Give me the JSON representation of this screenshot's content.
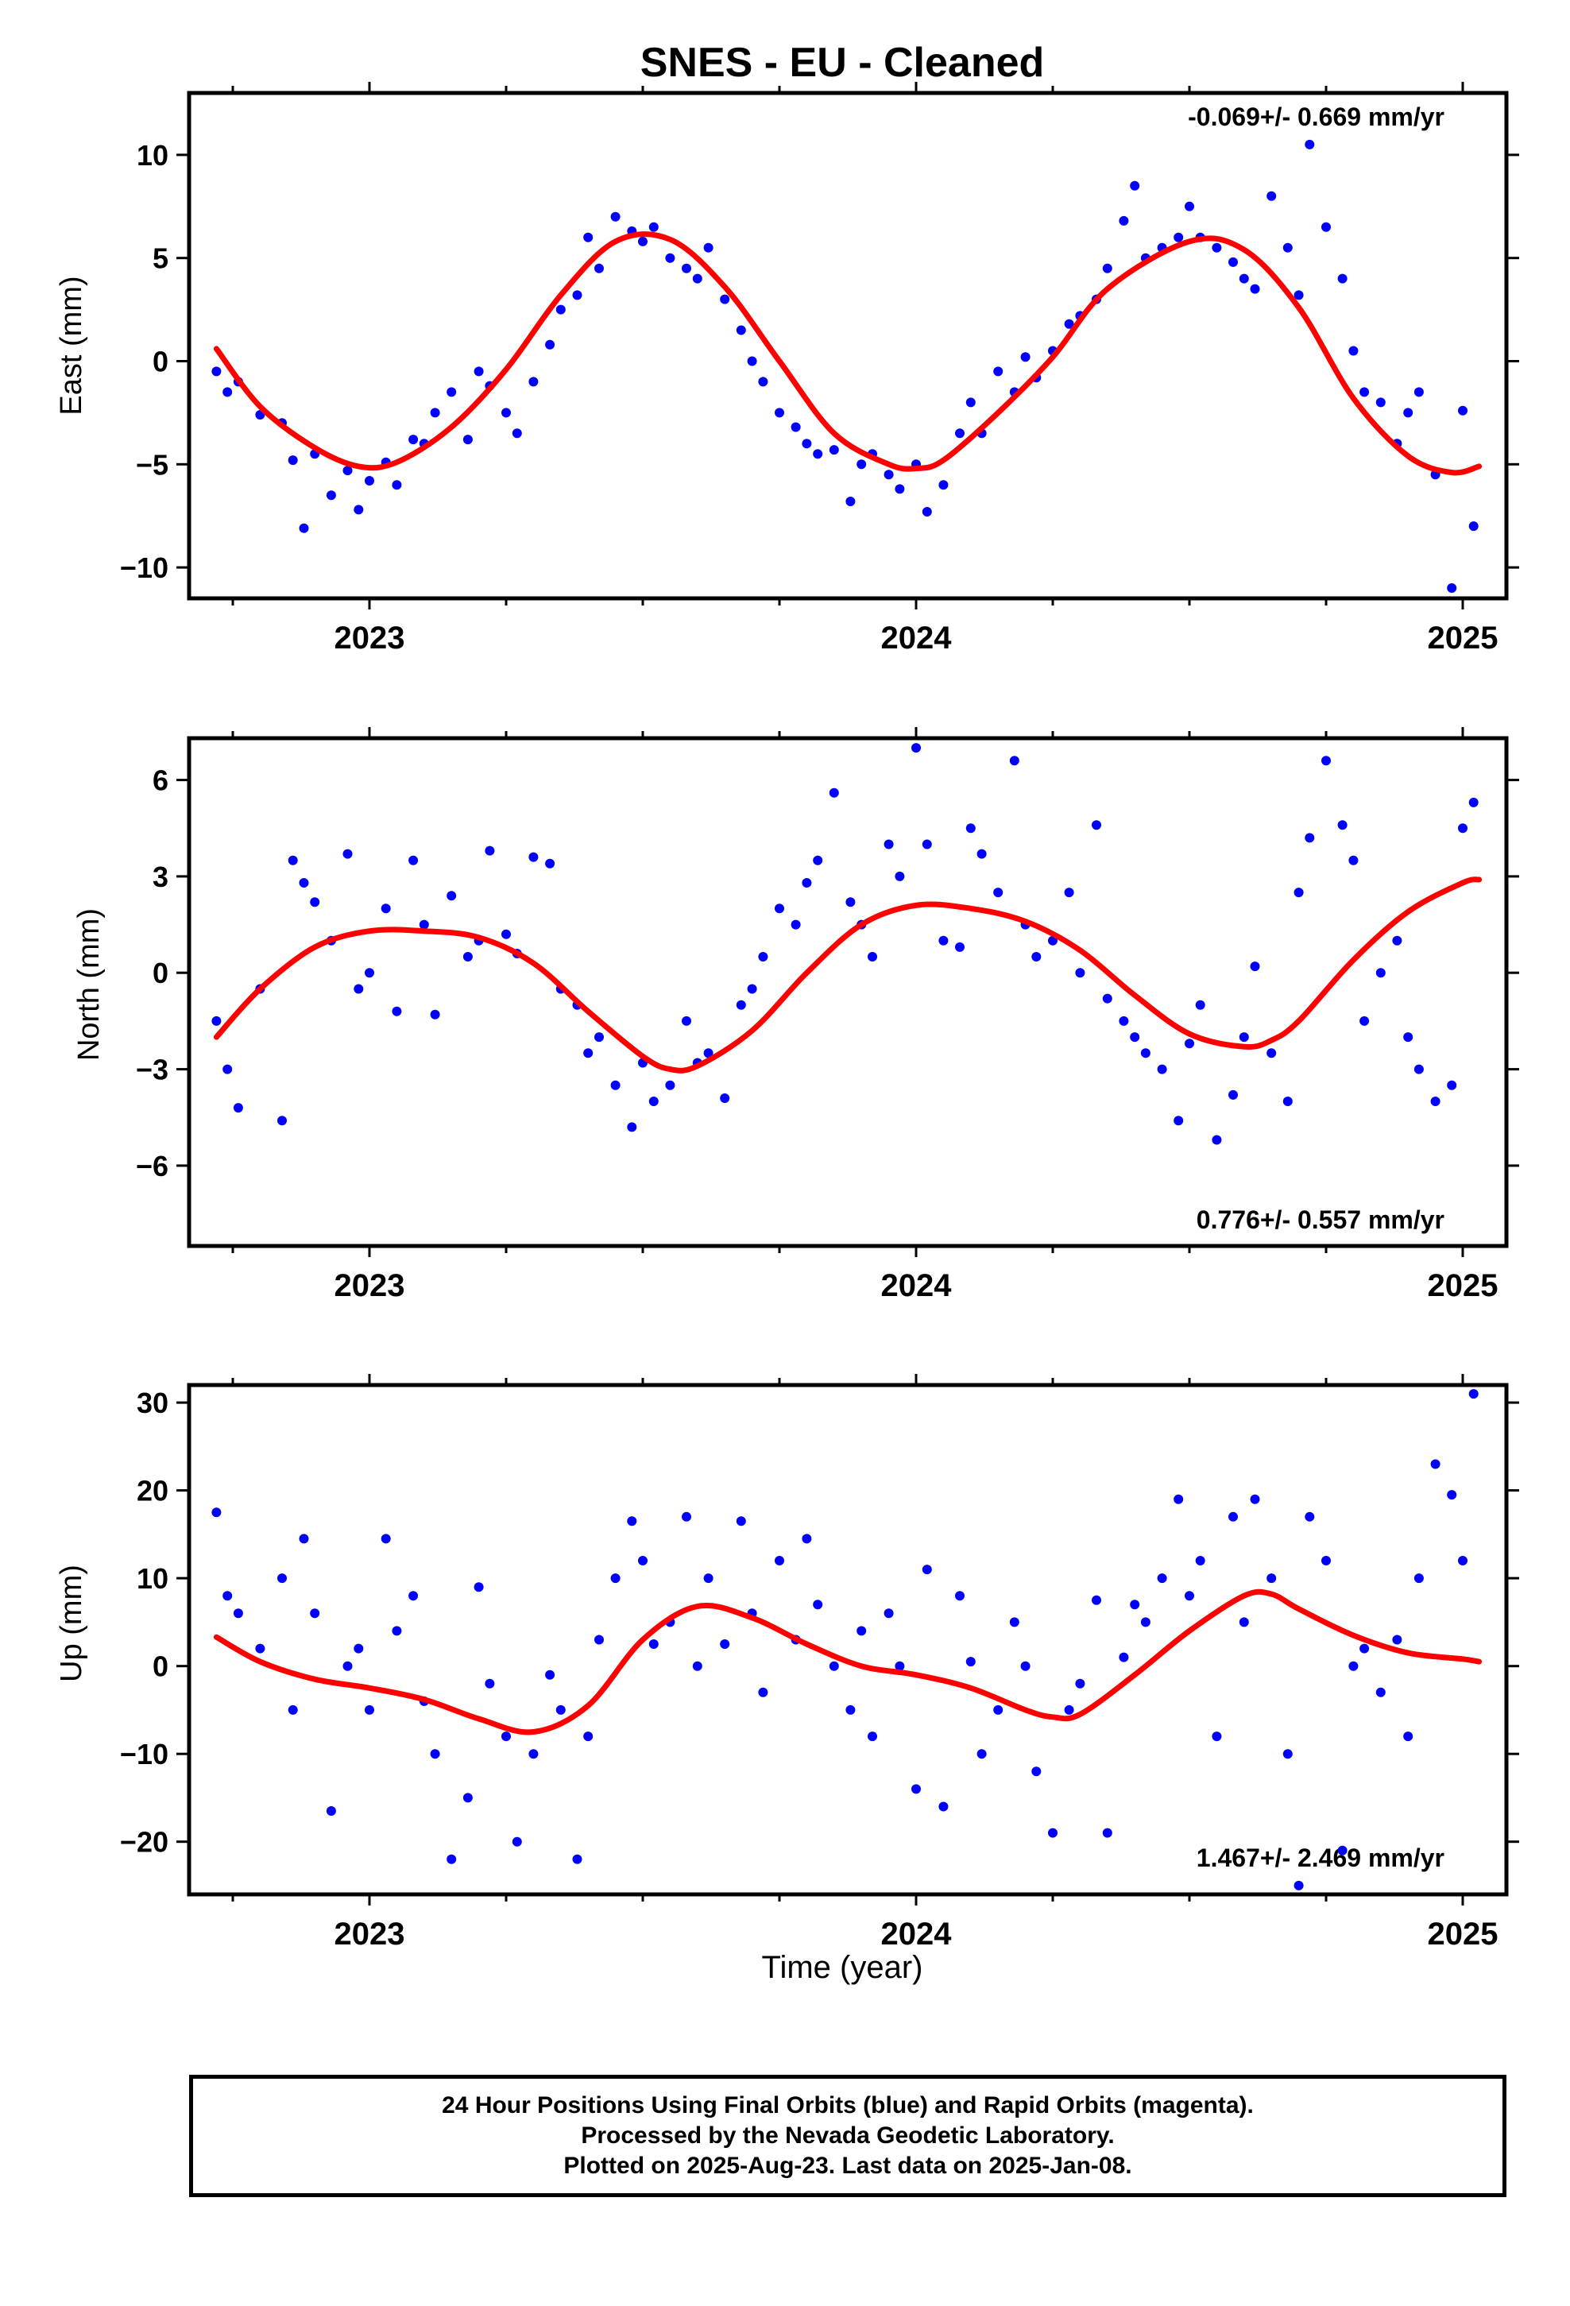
{
  "title": "SNES  - EU - Cleaned",
  "xlabel": "Time (year)",
  "footer": {
    "line1": "24 Hour Positions Using Final Orbits (blue) and Rapid Orbits (magenta).",
    "line2": "Processed by the Nevada Geodetic Laboratory.",
    "line3": "Plotted on 2025-Aug-23. Last data on 2025-Jan-08."
  },
  "colors": {
    "points": "#0000ff",
    "model": "#ff0000",
    "frame": "#000000"
  },
  "chart_data": [
    {
      "type": "scatter",
      "name": "east",
      "ylabel": "East (mm)",
      "rate_label": "-0.069+/- 0.669 mm/yr",
      "rate_position": "top-right",
      "xlim": [
        2022.67,
        2025.08
      ],
      "ylim": [
        -11.5,
        13
      ],
      "yticks": [
        -10,
        -5,
        0,
        5,
        10
      ],
      "xticks": [
        2023,
        2024,
        2025
      ],
      "xtick_labels": [
        "2023",
        "2024",
        "2025"
      ],
      "grid": false,
      "fit": {
        "x": [
          2022.72,
          2022.8,
          2022.9,
          2022.98,
          2023.05,
          2023.15,
          2023.25,
          2023.35,
          2023.45,
          2023.55,
          2023.65,
          2023.75,
          2023.85,
          2023.95,
          2024.0,
          2024.05,
          2024.15,
          2024.25,
          2024.35,
          2024.5,
          2024.6,
          2024.7,
          2024.8,
          2024.9,
          2024.98,
          2025.03
        ],
        "y": [
          0.6,
          -2.2,
          -4.2,
          -5.1,
          -4.9,
          -3.2,
          -0.4,
          3.2,
          5.8,
          5.9,
          3.6,
          0.0,
          -3.5,
          -5.0,
          -5.2,
          -4.8,
          -2.5,
          0.2,
          3.5,
          5.8,
          5.4,
          2.6,
          -1.8,
          -4.6,
          -5.4,
          -5.1
        ]
      },
      "points": {
        "x": [
          2022.72,
          2022.74,
          2022.76,
          2022.8,
          2022.84,
          2022.86,
          2022.88,
          2022.9,
          2022.93,
          2022.96,
          2022.98,
          2023.0,
          2023.03,
          2023.05,
          2023.08,
          2023.1,
          2023.12,
          2023.15,
          2023.18,
          2023.2,
          2023.22,
          2023.25,
          2023.27,
          2023.3,
          2023.33,
          2023.35,
          2023.38,
          2023.4,
          2023.42,
          2023.45,
          2023.48,
          2023.5,
          2023.52,
          2023.55,
          2023.58,
          2023.6,
          2023.62,
          2023.65,
          2023.68,
          2023.7,
          2023.72,
          2023.75,
          2023.78,
          2023.8,
          2023.82,
          2023.85,
          2023.88,
          2023.9,
          2023.92,
          2023.95,
          2023.97,
          2024.0,
          2024.02,
          2024.05,
          2024.08,
          2024.1,
          2024.12,
          2024.15,
          2024.18,
          2024.2,
          2024.22,
          2024.25,
          2024.28,
          2024.3,
          2024.33,
          2024.35,
          2024.38,
          2024.4,
          2024.42,
          2024.45,
          2024.48,
          2024.5,
          2024.52,
          2024.55,
          2024.58,
          2024.6,
          2024.62,
          2024.65,
          2024.68,
          2024.7,
          2024.72,
          2024.75,
          2024.78,
          2024.8,
          2024.82,
          2024.85,
          2024.88,
          2024.9,
          2024.92,
          2024.95,
          2024.98,
          2025.0,
          2025.02
        ],
        "y": [
          -0.5,
          -1.5,
          -1.0,
          -2.6,
          -3.0,
          -4.8,
          -8.1,
          -4.5,
          -6.5,
          -5.3,
          -7.2,
          -5.8,
          -4.9,
          -6.0,
          -3.8,
          -4.0,
          -2.5,
          -1.5,
          -3.8,
          -0.5,
          -1.2,
          -2.5,
          -3.5,
          -1.0,
          0.8,
          2.5,
          3.2,
          6.0,
          4.5,
          7.0,
          6.3,
          5.8,
          6.5,
          5.0,
          4.5,
          4.0,
          5.5,
          3.0,
          1.5,
          0.0,
          -1.0,
          -2.5,
          -3.2,
          -4.0,
          -4.5,
          -4.3,
          -6.8,
          -5.0,
          -4.5,
          -5.5,
          -6.2,
          -5.0,
          -7.3,
          -6.0,
          -3.5,
          -2.0,
          -3.5,
          -0.5,
          -1.5,
          0.2,
          -0.8,
          0.5,
          1.8,
          2.2,
          3.0,
          4.5,
          6.8,
          8.5,
          5.0,
          5.5,
          6.0,
          7.5,
          6.0,
          5.5,
          4.8,
          4.0,
          3.5,
          8.0,
          5.5,
          3.2,
          10.5,
          6.5,
          4.0,
          0.5,
          -1.5,
          -2.0,
          -4.0,
          -2.5,
          -1.5,
          -5.5,
          -11.0,
          -2.4,
          -8.0
        ]
      }
    },
    {
      "type": "scatter",
      "name": "north",
      "ylabel": "North (mm)",
      "rate_label": "0.776+/- 0.557 mm/yr",
      "rate_position": "bottom-right",
      "xlim": [
        2022.67,
        2025.08
      ],
      "ylim": [
        -8.5,
        7.3
      ],
      "yticks": [
        -6,
        -3,
        0,
        3,
        6
      ],
      "xticks": [
        2023,
        2024,
        2025
      ],
      "xtick_labels": [
        "2023",
        "2024",
        "2025"
      ],
      "grid": false,
      "fit": {
        "x": [
          2022.72,
          2022.8,
          2022.9,
          2023.0,
          2023.1,
          2023.2,
          2023.3,
          2023.4,
          2023.5,
          2023.55,
          2023.6,
          2023.7,
          2023.8,
          2023.9,
          2024.0,
          2024.1,
          2024.2,
          2024.3,
          2024.4,
          2024.5,
          2024.6,
          2024.65,
          2024.7,
          2024.8,
          2024.9,
          2025.0,
          2025.03
        ],
        "y": [
          -2.0,
          -0.5,
          0.8,
          1.3,
          1.3,
          1.1,
          0.3,
          -1.2,
          -2.6,
          -3.0,
          -2.9,
          -1.8,
          0.0,
          1.5,
          2.1,
          2.0,
          1.6,
          0.7,
          -0.7,
          -1.9,
          -2.3,
          -2.1,
          -1.5,
          0.4,
          1.9,
          2.8,
          2.9
        ]
      },
      "points": {
        "x": [
          2022.72,
          2022.74,
          2022.76,
          2022.8,
          2022.84,
          2022.86,
          2022.88,
          2022.9,
          2022.93,
          2022.96,
          2022.98,
          2023.0,
          2023.03,
          2023.05,
          2023.08,
          2023.1,
          2023.12,
          2023.15,
          2023.18,
          2023.2,
          2023.22,
          2023.25,
          2023.27,
          2023.3,
          2023.33,
          2023.35,
          2023.38,
          2023.4,
          2023.42,
          2023.45,
          2023.48,
          2023.5,
          2023.52,
          2023.55,
          2023.58,
          2023.6,
          2023.62,
          2023.65,
          2023.68,
          2023.7,
          2023.72,
          2023.75,
          2023.78,
          2023.8,
          2023.82,
          2023.85,
          2023.88,
          2023.9,
          2023.92,
          2023.95,
          2023.97,
          2024.0,
          2024.02,
          2024.05,
          2024.08,
          2024.1,
          2024.12,
          2024.15,
          2024.18,
          2024.2,
          2024.22,
          2024.25,
          2024.28,
          2024.3,
          2024.33,
          2024.35,
          2024.38,
          2024.4,
          2024.42,
          2024.45,
          2024.48,
          2024.5,
          2024.52,
          2024.55,
          2024.58,
          2024.6,
          2024.62,
          2024.65,
          2024.68,
          2024.7,
          2024.72,
          2024.75,
          2024.78,
          2024.8,
          2024.82,
          2024.85,
          2024.88,
          2024.9,
          2024.92,
          2024.95,
          2024.98,
          2025.0,
          2025.02
        ],
        "y": [
          -1.5,
          -3.0,
          -4.2,
          -0.5,
          -4.6,
          3.5,
          2.8,
          2.2,
          1.0,
          3.7,
          -0.5,
          0.0,
          2.0,
          -1.2,
          3.5,
          1.5,
          -1.3,
          2.4,
          0.5,
          1.0,
          3.8,
          1.2,
          0.6,
          3.6,
          3.4,
          -0.5,
          -1.0,
          -2.5,
          -2.0,
          -3.5,
          -4.8,
          -2.8,
          -4.0,
          -3.5,
          -1.5,
          -2.8,
          -2.5,
          -3.9,
          -1.0,
          -0.5,
          0.5,
          2.0,
          1.5,
          2.8,
          3.5,
          5.6,
          2.2,
          1.5,
          0.5,
          4.0,
          3.0,
          7.0,
          4.0,
          1.0,
          0.8,
          4.5,
          3.7,
          2.5,
          6.6,
          1.5,
          0.5,
          1.0,
          2.5,
          0.0,
          4.6,
          -0.8,
          -1.5,
          -2.0,
          -2.5,
          -3.0,
          -4.6,
          -2.2,
          -1.0,
          -5.2,
          -3.8,
          -2.0,
          0.2,
          -2.5,
          -4.0,
          2.5,
          4.2,
          6.6,
          4.6,
          3.5,
          -1.5,
          0.0,
          1.0,
          -2.0,
          -3.0,
          -4.0,
          -3.5,
          4.5,
          5.3
        ]
      }
    },
    {
      "type": "scatter",
      "name": "up",
      "ylabel": "Up (mm)",
      "rate_label": "1.467+/- 2.469 mm/yr",
      "rate_position": "bottom-right",
      "xlim": [
        2022.67,
        2025.08
      ],
      "ylim": [
        -26,
        32
      ],
      "yticks": [
        -20,
        -10,
        0,
        10,
        20,
        30
      ],
      "xticks": [
        2023,
        2024,
        2025
      ],
      "xtick_labels": [
        "2023",
        "2024",
        "2025"
      ],
      "grid": false,
      "fit": {
        "x": [
          2022.72,
          2022.8,
          2022.9,
          2023.0,
          2023.1,
          2023.2,
          2023.3,
          2023.4,
          2023.5,
          2023.6,
          2023.7,
          2023.8,
          2023.9,
          2024.0,
          2024.1,
          2024.2,
          2024.25,
          2024.3,
          2024.4,
          2024.5,
          2024.6,
          2024.65,
          2024.7,
          2024.8,
          2024.9,
          2025.0,
          2025.03
        ],
        "y": [
          3.3,
          0.5,
          -1.5,
          -2.5,
          -3.8,
          -6.0,
          -7.5,
          -4.5,
          3.0,
          6.8,
          5.5,
          2.5,
          0.0,
          -1.0,
          -2.5,
          -5.0,
          -5.8,
          -5.5,
          -1.0,
          4.0,
          8.0,
          8.2,
          6.5,
          3.5,
          1.5,
          0.8,
          0.5
        ]
      },
      "points": {
        "x": [
          2022.72,
          2022.74,
          2022.76,
          2022.8,
          2022.84,
          2022.86,
          2022.88,
          2022.9,
          2022.93,
          2022.96,
          2022.98,
          2023.0,
          2023.03,
          2023.05,
          2023.08,
          2023.1,
          2023.12,
          2023.15,
          2023.18,
          2023.2,
          2023.22,
          2023.25,
          2023.27,
          2023.3,
          2023.33,
          2023.35,
          2023.38,
          2023.4,
          2023.42,
          2023.45,
          2023.48,
          2023.5,
          2023.52,
          2023.55,
          2023.58,
          2023.6,
          2023.62,
          2023.65,
          2023.68,
          2023.7,
          2023.72,
          2023.75,
          2023.78,
          2023.8,
          2023.82,
          2023.85,
          2023.88,
          2023.9,
          2023.92,
          2023.95,
          2023.97,
          2024.0,
          2024.02,
          2024.05,
          2024.08,
          2024.1,
          2024.12,
          2024.15,
          2024.18,
          2024.2,
          2024.22,
          2024.25,
          2024.28,
          2024.3,
          2024.33,
          2024.35,
          2024.38,
          2024.4,
          2024.42,
          2024.45,
          2024.48,
          2024.5,
          2024.52,
          2024.55,
          2024.58,
          2024.6,
          2024.62,
          2024.65,
          2024.68,
          2024.7,
          2024.72,
          2024.75,
          2024.78,
          2024.8,
          2024.82,
          2024.85,
          2024.88,
          2024.9,
          2024.92,
          2024.95,
          2024.98,
          2025.0,
          2025.02
        ],
        "y": [
          17.5,
          8.0,
          6.0,
          2.0,
          10.0,
          -5.0,
          14.5,
          6.0,
          -16.5,
          0.0,
          2.0,
          -5.0,
          14.5,
          4.0,
          8.0,
          -4.0,
          -10.0,
          -22.0,
          -15.0,
          9.0,
          -2.0,
          -8.0,
          -20.0,
          -10.0,
          -1.0,
          -5.0,
          -22.0,
          -8.0,
          3.0,
          10.0,
          16.5,
          12.0,
          2.5,
          5.0,
          17.0,
          0.0,
          10.0,
          2.5,
          16.5,
          6.0,
          -3.0,
          12.0,
          3.0,
          14.5,
          7.0,
          0.0,
          -5.0,
          4.0,
          -8.0,
          6.0,
          0.0,
          -14.0,
          11.0,
          -16.0,
          8.0,
          0.5,
          -10.0,
          -5.0,
          5.0,
          0.0,
          -12.0,
          -19.0,
          -5.0,
          -2.0,
          7.5,
          -19.0,
          1.0,
          7.0,
          5.0,
          10.0,
          19.0,
          8.0,
          12.0,
          -8.0,
          17.0,
          5.0,
          19.0,
          10.0,
          -10.0,
          -25.0,
          17.0,
          12.0,
          -21.0,
          0.0,
          2.0,
          -3.0,
          3.0,
          -8.0,
          10.0,
          23.0,
          19.5,
          12.0,
          31.0
        ]
      }
    }
  ]
}
